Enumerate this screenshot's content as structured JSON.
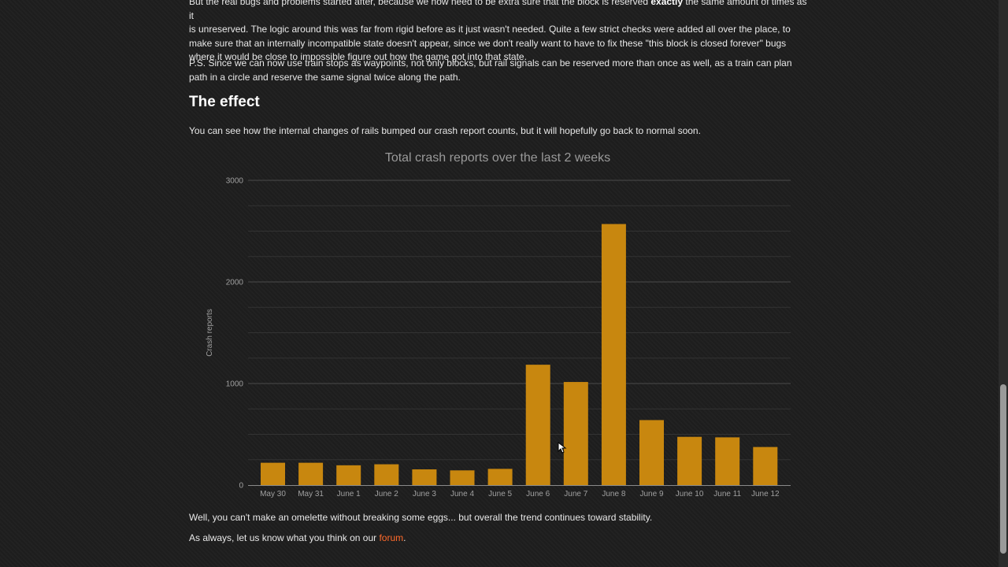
{
  "article": {
    "para1_line0": "But the real bugs and problems started after, because we now need to be extra sure that the block is reserved ",
    "para1_bold": "exactly",
    "para1_line0_end": " the same amount of times as it",
    "para1_rest": "is unreserved. The logic around this was far from rigid before as it just wasn't needed. Quite a few strict checks were added all over the place, to make sure that an internally incompatible state doesn't appear, since we don't really want to have to fix these \"this block is closed forever\" bugs where it would be close to impossible figure out how the game got into that state.",
    "para2": "P.S. Since we can now use train stops as waypoints, not only blocks, but rail signals can be reserved more than once as well, as a train can plan path in a circle and reserve the same signal twice along the path.",
    "heading": "The effect",
    "para3": "You can see how the internal changes of rails bumped our crash report counts, but it will hopefully go back to normal soon.",
    "para4": "Well, you can't make an omelette without breaking some eggs... but overall the trend continues toward stability.",
    "para5_before": "As always, let us know what you think on our ",
    "para5_link": "forum",
    "para5_after": "."
  },
  "chart_data": {
    "type": "bar",
    "title": "Total crash reports over the last 2 weeks",
    "ylabel": "Crash reports",
    "xlabel": "",
    "categories": [
      "May 30",
      "May 31",
      "June 1",
      "June 2",
      "June 3",
      "June 4",
      "June 5",
      "June 6",
      "June 7",
      "June 8",
      "June 9",
      "June 10",
      "June 11",
      "June 12"
    ],
    "values": [
      220,
      220,
      195,
      205,
      155,
      145,
      160,
      1185,
      1015,
      2570,
      640,
      475,
      470,
      375
    ],
    "ylim": [
      0,
      3000
    ],
    "yticks": [
      0,
      1000,
      2000,
      3000
    ],
    "minor_step": 250,
    "bar_color": "#c8870f",
    "title_color": "#9a9a9a",
    "axis_text_color": "#a0a0a0",
    "grid": true,
    "legend": "none"
  }
}
